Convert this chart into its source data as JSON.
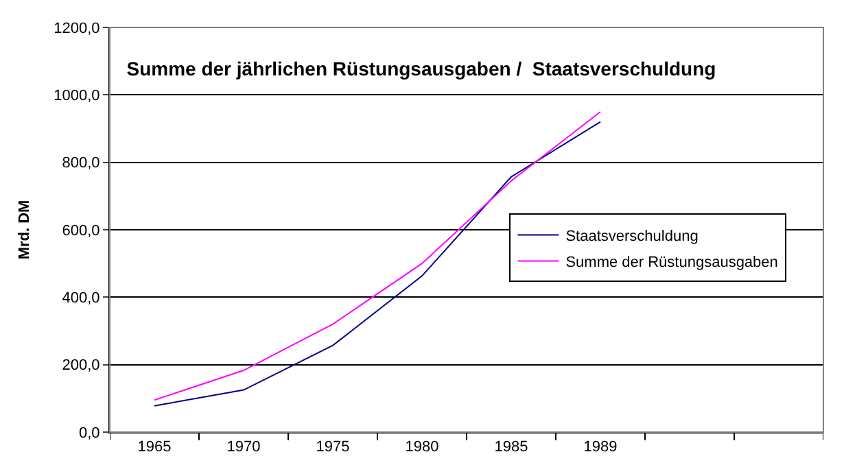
{
  "chart_data": {
    "type": "line",
    "title": "Summe der jährlichen Rüstungsausgaben /  Staatsverschuldung",
    "ylabel": "Mrd. DM",
    "categories": [
      "1965",
      "1970",
      "1975",
      "1980",
      "1985",
      "1989",
      null,
      null
    ],
    "series": [
      {
        "name": "Staatsverschuldung",
        "color": "#000080",
        "values": [
          78,
          125,
          257,
          463,
          757,
          920,
          null,
          null
        ]
      },
      {
        "name": "Summe der Rüstungsausgaben",
        "color": "#ff00ff",
        "values": [
          95,
          183,
          320,
          500,
          745,
          950,
          null,
          null
        ]
      }
    ],
    "ylim": [
      0,
      1200
    ],
    "yticks": [
      {
        "value": 0,
        "label": "0,0"
      },
      {
        "value": 200,
        "label": "200,0"
      },
      {
        "value": 400,
        "label": "400,0"
      },
      {
        "value": 600,
        "label": "600,0"
      },
      {
        "value": 800,
        "label": "800,0"
      },
      {
        "value": 1000,
        "label": "1000,0"
      },
      {
        "value": 1200,
        "label": "1200,0"
      }
    ],
    "grid": "y",
    "legend": "right",
    "marker": "none",
    "line_style": "solid"
  }
}
